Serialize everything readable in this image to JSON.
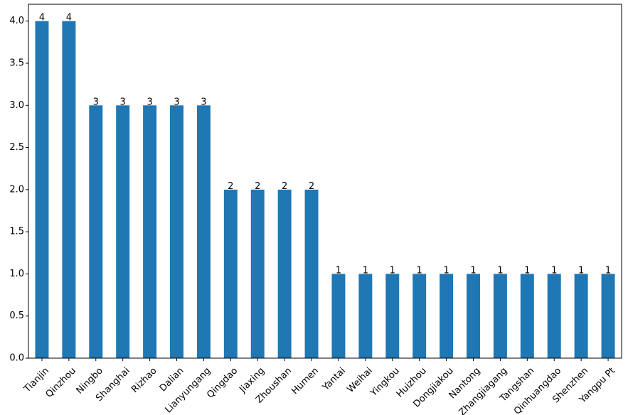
{
  "chart_data": {
    "type": "bar",
    "categories": [
      "Tianjin",
      "Qinzhou",
      "Ningbo",
      "Shanghai",
      "Rizhao",
      "Dalian",
      "Lianyungang",
      "Qingdao",
      "Jiaxing",
      "Zhoushan",
      "Humen",
      "Yantai",
      "Weihai",
      "Yingkou",
      "Huizhou",
      "Dongjiakou",
      "Nantong",
      "Zhangjiagang",
      "Tangshan",
      "Qinhuangdao",
      "Shenzhen",
      "Yangpu Pt"
    ],
    "values": [
      4,
      4,
      3,
      3,
      3,
      3,
      3,
      2,
      2,
      2,
      2,
      1,
      1,
      1,
      1,
      1,
      1,
      1,
      1,
      1,
      1,
      1
    ],
    "data_labels": [
      "4",
      "4",
      "3",
      "3",
      "3",
      "3",
      "3",
      "2",
      "2",
      "2",
      "2",
      "1",
      "1",
      "1",
      "1",
      "1",
      "1",
      "1",
      "1",
      "1",
      "1",
      "1"
    ],
    "yticks": [
      "0.0",
      "0.5",
      "1.0",
      "1.5",
      "2.0",
      "2.5",
      "3.0",
      "3.5",
      "4.0"
    ],
    "ytick_values": [
      0,
      0.5,
      1.0,
      1.5,
      2.0,
      2.5,
      3.0,
      3.5,
      4.0
    ],
    "ylim": [
      0,
      4.2
    ],
    "bar_color": "#1f77b4",
    "grid": false,
    "title": "",
    "xlabel": "",
    "ylabel": ""
  }
}
